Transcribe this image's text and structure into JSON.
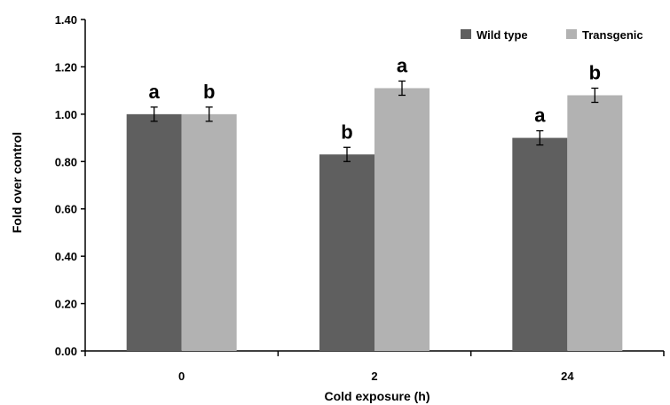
{
  "chart_data": {
    "type": "bar",
    "title": "",
    "xlabel": "Cold exposure (h)",
    "ylabel": "Fold over control",
    "ylim": [
      0,
      1.4
    ],
    "yticks": [
      "0.00",
      "0.20",
      "0.40",
      "0.60",
      "0.80",
      "1.00",
      "1.20",
      "1.40"
    ],
    "categories": [
      "0",
      "2",
      "24"
    ],
    "series": [
      {
        "name": "Wild type",
        "color": "#5f5f5f",
        "values": [
          1.0,
          0.83,
          0.9
        ],
        "errors": [
          0.03,
          0.03,
          0.03
        ],
        "sig_labels": [
          "a",
          "b",
          "a"
        ]
      },
      {
        "name": "Transgenic",
        "color": "#b2b2b2",
        "values": [
          1.0,
          1.11,
          1.08
        ],
        "errors": [
          0.03,
          0.03,
          0.03
        ],
        "sig_labels": [
          "b",
          "a",
          "b"
        ]
      }
    ],
    "grid": false,
    "legend_position": "top-right"
  }
}
